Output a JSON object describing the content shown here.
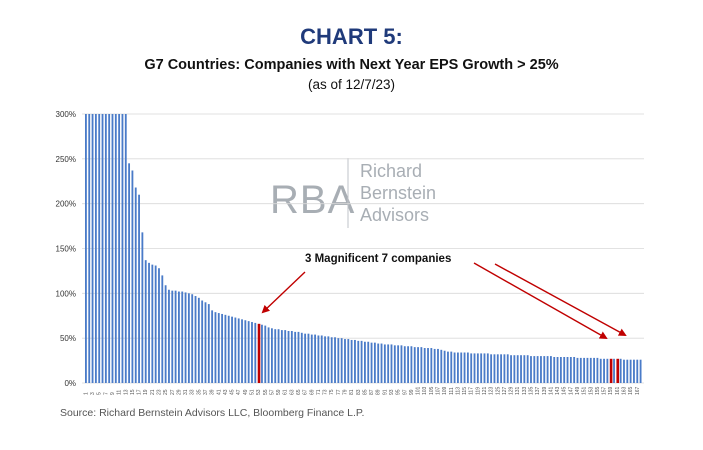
{
  "header": {
    "title": "CHART 5:",
    "subtitle": "G7 Countries: Companies with Next Year EPS Growth > 25%",
    "asof": "(as of 12/7/23)"
  },
  "watermark": {
    "letters": "RBA",
    "line1": "Richard",
    "line2": "Bernstein",
    "line3": "Advisors"
  },
  "source": "Source: Richard Bernstein Advisors LLC, Bloomberg Finance L.P.",
  "colors": {
    "bar": "#4a7bc8",
    "highlight": "#c00000",
    "grid": "#d9d9d9",
    "title": "#1f3a7a",
    "arrow": "#c00000"
  },
  "chart_data": {
    "type": "bar",
    "title": "G7 Countries: Companies with Next Year EPS Growth > 25%",
    "xlabel": "",
    "ylabel": "",
    "ylim": [
      0,
      300
    ],
    "yticks": [
      "0%",
      "50%",
      "100%",
      "150%",
      "200%",
      "250%",
      "300%"
    ],
    "count": 168,
    "values": [
      300,
      300,
      300,
      300,
      300,
      300,
      300,
      300,
      300,
      300,
      300,
      300,
      300,
      245,
      237,
      218,
      210,
      168,
      137,
      134,
      132,
      131,
      128,
      120,
      109,
      104,
      103,
      103,
      102,
      102,
      101,
      100,
      99,
      97,
      95,
      92,
      90,
      88,
      81,
      79,
      78,
      77,
      76,
      75,
      74,
      73,
      72,
      71,
      70,
      69,
      68,
      67,
      66,
      65,
      64,
      62,
      61,
      60,
      60,
      59,
      59,
      58,
      58,
      57,
      57,
      56,
      55,
      55,
      54,
      54,
      53,
      53,
      52,
      52,
      51,
      51,
      50,
      50,
      49,
      49,
      48,
      48,
      47,
      47,
      46,
      46,
      45,
      45,
      44,
      44,
      43,
      43,
      43,
      42,
      42,
      42,
      41,
      41,
      41,
      40,
      40,
      40,
      39,
      39,
      39,
      38,
      38,
      37,
      36,
      35,
      35,
      34,
      34,
      34,
      34,
      34,
      33,
      33,
      33,
      33,
      33,
      33,
      32,
      32,
      32,
      32,
      32,
      32,
      31,
      31,
      31,
      31,
      31,
      31,
      30,
      30,
      30,
      30,
      30,
      30,
      30,
      29,
      29,
      29,
      29,
      29,
      29,
      29,
      28,
      28,
      28,
      28,
      28,
      28,
      28,
      27,
      27,
      27,
      27,
      27,
      27,
      27,
      26,
      26,
      26,
      26,
      26,
      26
    ],
    "highlighted_bars": [
      53,
      159,
      161
    ],
    "annotation": "3 Magnificent 7 companies"
  }
}
